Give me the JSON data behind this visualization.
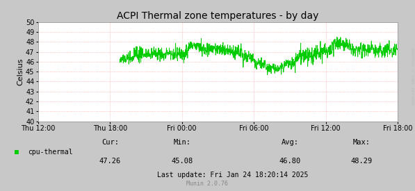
{
  "title": "ACPI Thermal zone temperatures - by day",
  "ylabel": "Celsius",
  "outer_bg": "#C8C8C8",
  "plot_bg": "#FFFFFF",
  "grid_color": "#FF9999",
  "line_color": "#00CC00",
  "legend_label": "cpu-thermal",
  "legend_color": "#00CC00",
  "cur": 47.26,
  "min": 45.08,
  "avg": 46.8,
  "max": 48.29,
  "last_update": "Last update: Fri Jan 24 18:20:14 2025",
  "munin_version": "Munin 2.0.76",
  "rrdtool_label": "RRDTOOL / TOBI OETIKER",
  "ylim": [
    40,
    50
  ],
  "x_start": 0,
  "x_end": 30,
  "xtick_positions": [
    0,
    6,
    12,
    18,
    24,
    30
  ],
  "xtick_labels": [
    "Thu 12:00",
    "Thu 18:00",
    "Fri 00:00",
    "Fri 06:00",
    "Fri 12:00",
    "Fri 18:00"
  ]
}
